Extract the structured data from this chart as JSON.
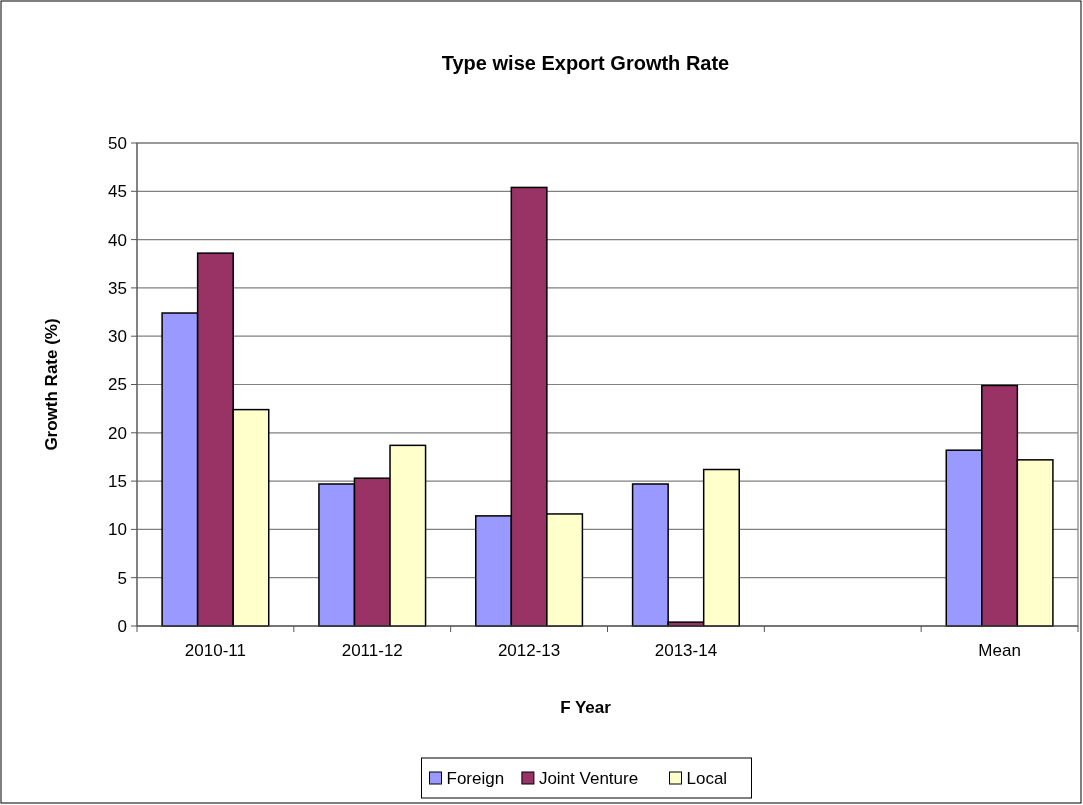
{
  "chart_data": {
    "type": "bar",
    "title": "Type wise Export Growth Rate",
    "xlabel": "F Year",
    "ylabel": "Growth Rate (%)",
    "categories": [
      "2010-11",
      "2011-12",
      "2012-13",
      "2013-14",
      null,
      "Mean"
    ],
    "series": [
      {
        "name": "Foreign",
        "color": "#9999ff",
        "values": [
          32.4,
          14.7,
          11.4,
          14.7,
          null,
          18.2
        ]
      },
      {
        "name": "Joint Venture",
        "color": "#993366",
        "values": [
          38.6,
          15.3,
          45.4,
          0.4,
          null,
          24.9
        ]
      },
      {
        "name": "Local",
        "color": "#ffffcc",
        "values": [
          22.4,
          18.7,
          11.6,
          16.2,
          null,
          17.2
        ]
      }
    ],
    "ylim": [
      0,
      50
    ],
    "yticks": [
      0,
      5,
      10,
      15,
      20,
      25,
      30,
      35,
      40,
      45,
      50
    ],
    "grid": "y",
    "legend": "bottom"
  }
}
